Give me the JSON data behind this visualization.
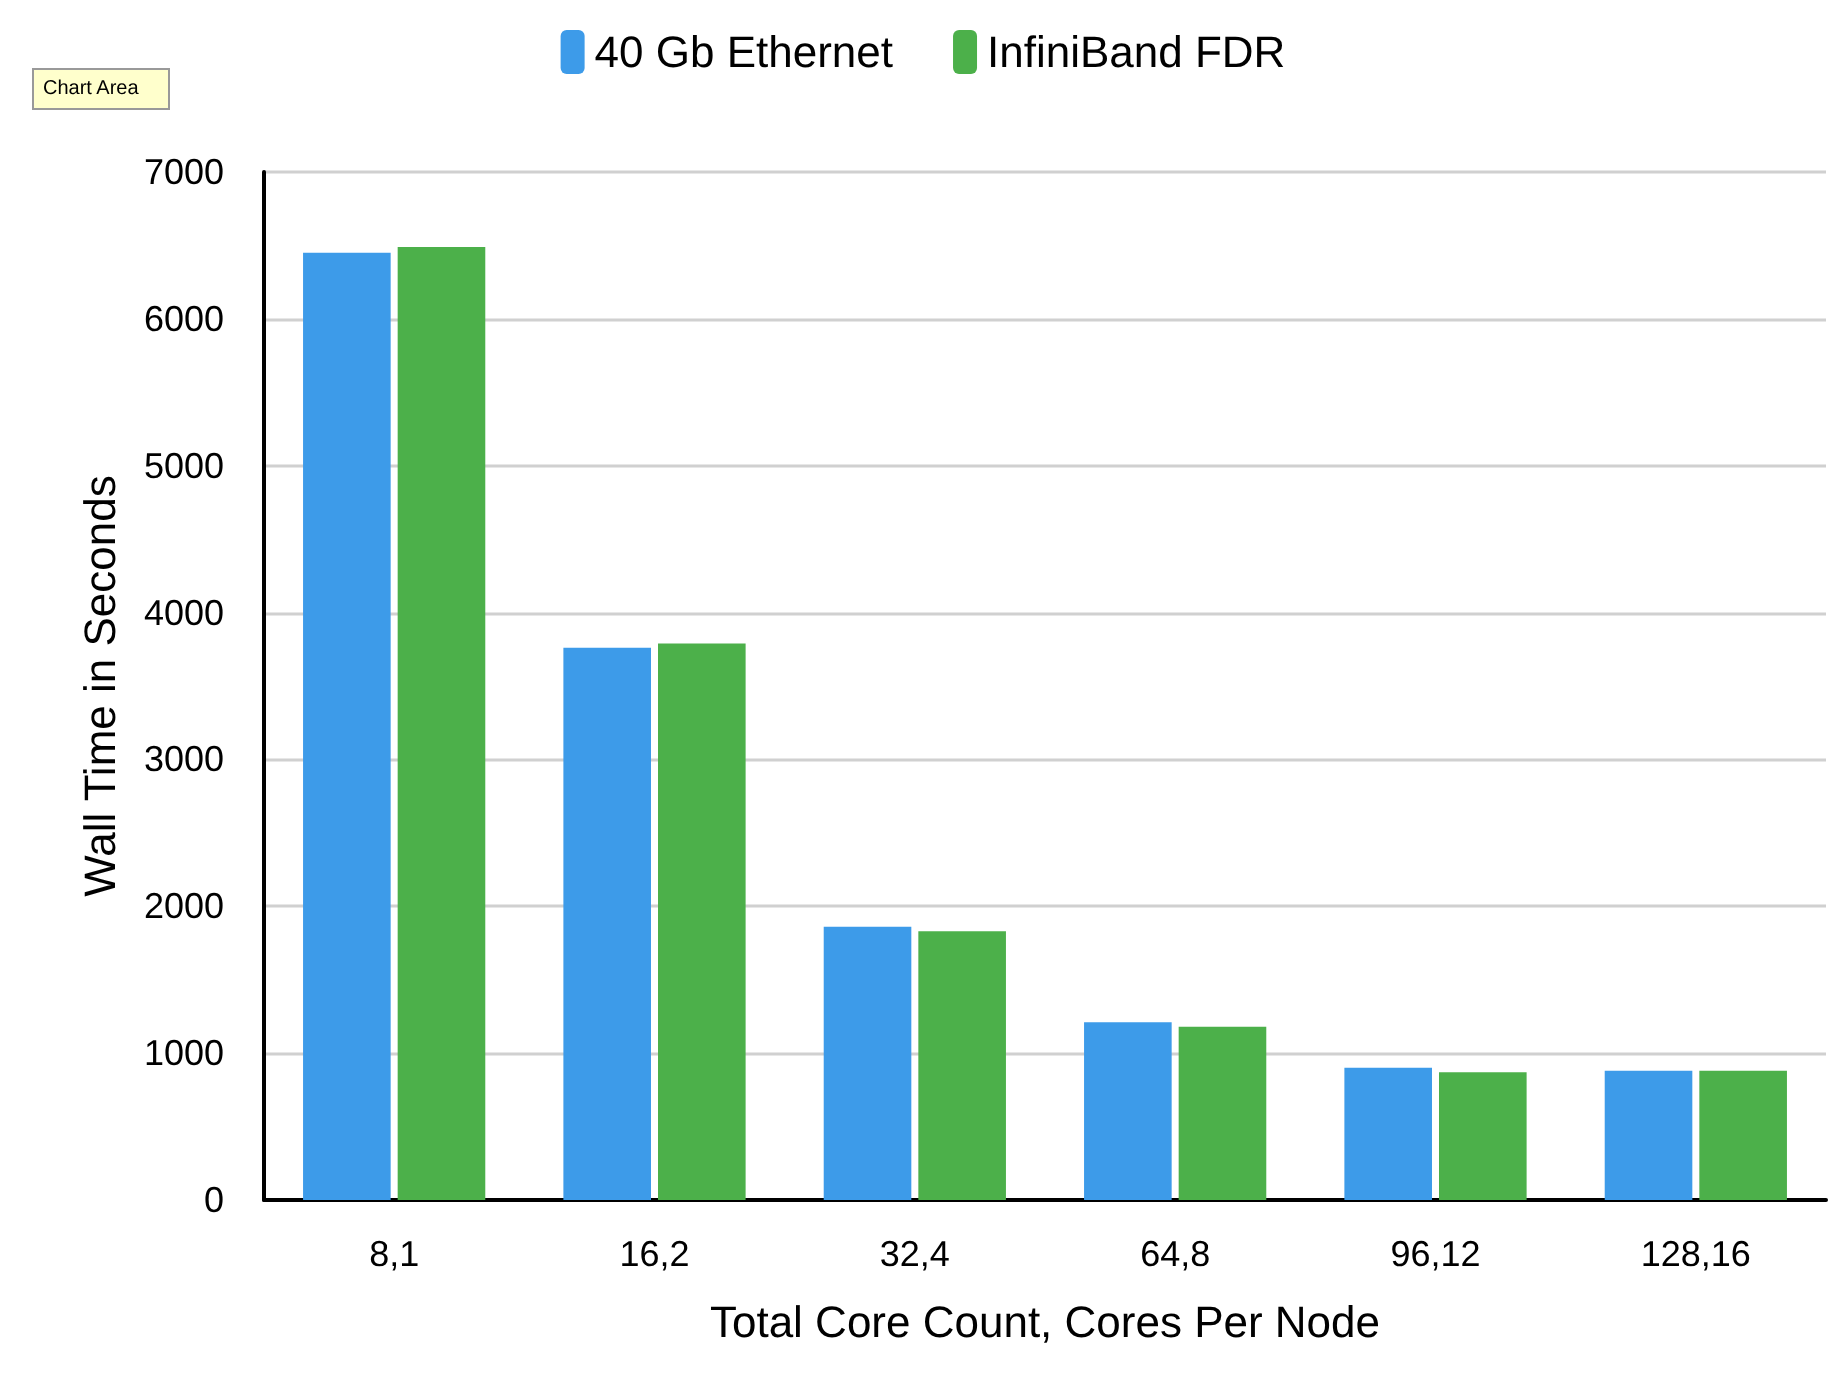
{
  "chart_data": {
    "type": "bar",
    "categories": [
      "8,1",
      "16,2",
      "32,4",
      "64,8",
      "96,12",
      "128,16"
    ],
    "series": [
      {
        "name": "40 Gb Ethernet",
        "color": "#3d9be9",
        "values": [
          6450,
          3760,
          1860,
          1210,
          900,
          880
        ]
      },
      {
        "name": "InfiniBand FDR",
        "color": "#4cb04a",
        "values": [
          6490,
          3790,
          1830,
          1180,
          870,
          880
        ]
      }
    ],
    "xlabel": "Total Core Count, Cores Per Node",
    "ylabel": "Wall Time in Seconds",
    "ylim": [
      0,
      7000
    ],
    "yticks": [
      0,
      1000,
      2000,
      3000,
      4000,
      5000,
      6000,
      7000
    ],
    "grid": "y",
    "legend": "top",
    "annotations": [
      "Chart Area"
    ]
  }
}
